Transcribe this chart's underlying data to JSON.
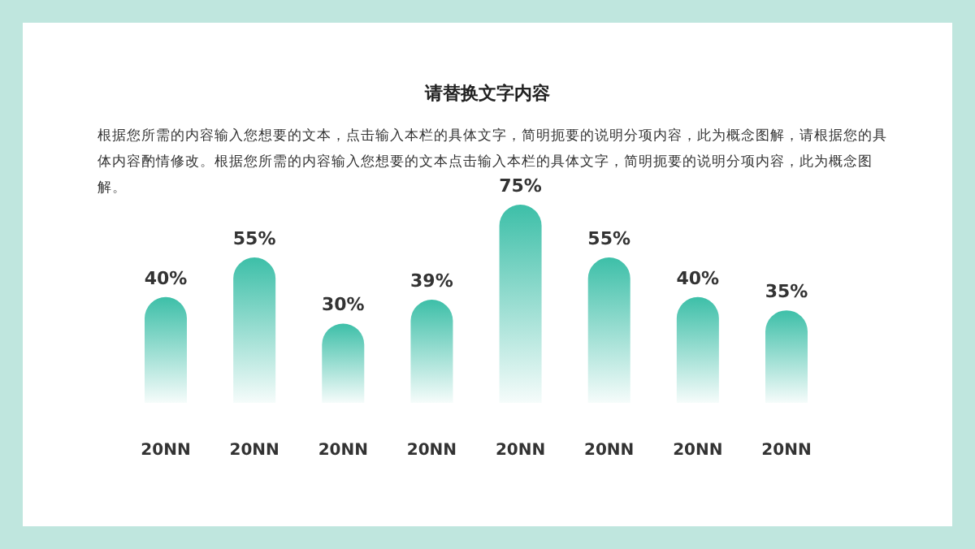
{
  "chart_data": {
    "type": "bar",
    "title": "请替换文字内容",
    "subtitle": "根据您所需的内容输入您想要的文本，点击输入本栏的具体文字，简明扼要的说明分项内容，此为概念图解，请根据您的具体内容酌情修改。根据您所需的内容输入您想要的文本点击输入本栏的具体文字，简明扼要的说明分项内容，此为概念图解。",
    "categories": [
      "20NN",
      "20NN",
      "20NN",
      "20NN",
      "20NN",
      "20NN",
      "20NN",
      "20NN"
    ],
    "values": [
      40,
      55,
      30,
      39,
      75,
      55,
      40,
      35
    ],
    "value_labels": [
      "40%",
      "55%",
      "30%",
      "39%",
      "75%",
      "55%",
      "40%",
      "35%"
    ],
    "color": "#3dbfa8"
  }
}
